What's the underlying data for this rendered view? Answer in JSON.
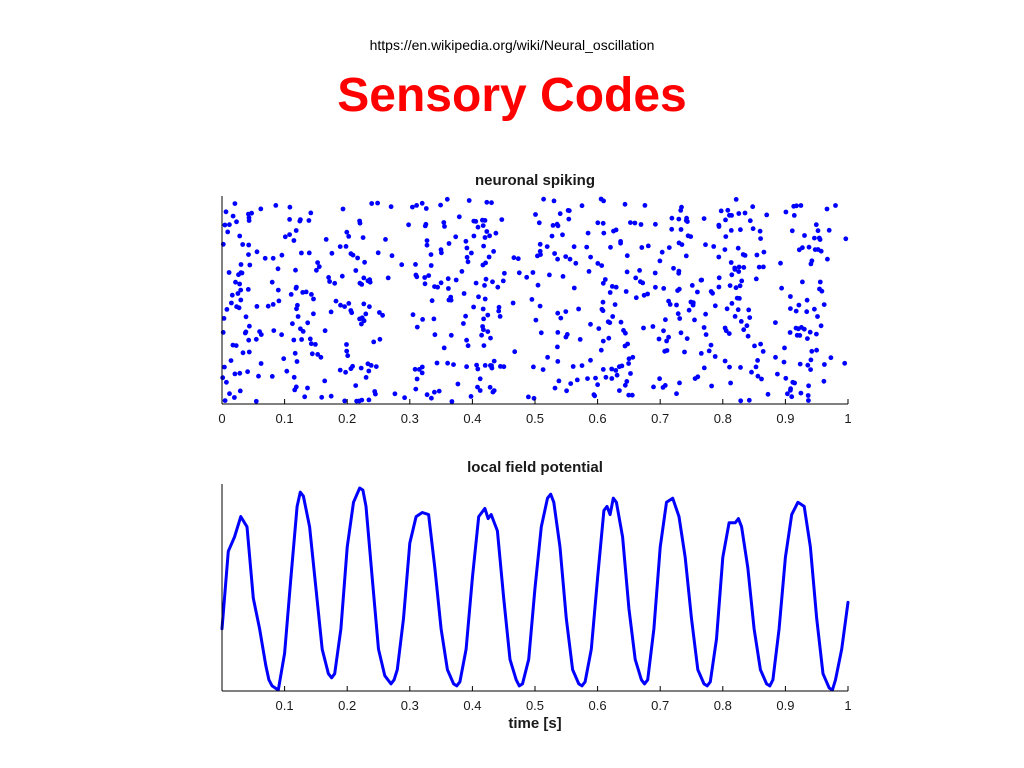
{
  "slide": {
    "url": "https://en.wikipedia.org/wiki/Neural_oscillation",
    "title": "Sensory Codes"
  },
  "chart_data": [
    {
      "type": "scatter",
      "title": "neuronal spiking",
      "xlim": [
        0,
        1
      ],
      "xticks": [
        "0",
        "0.1",
        "0.2",
        "0.3",
        "0.4",
        "0.5",
        "0.6",
        "0.7",
        "0.8",
        "0.9",
        "1"
      ],
      "xtick_values": [
        0,
        0.1,
        0.2,
        0.3,
        0.4,
        0.5,
        0.6,
        0.7,
        0.8,
        0.9,
        1
      ],
      "ylim": [
        0,
        1
      ],
      "marker_color": "#0000ff",
      "spike_density_peaks_s": [
        0.03,
        0.12,
        0.22,
        0.33,
        0.42,
        0.53,
        0.63,
        0.73,
        0.83,
        0.93
      ],
      "approx_spike_count": 700
    },
    {
      "type": "line",
      "title": "local field potential",
      "xlabel": "time [s]",
      "xlim": [
        0,
        1
      ],
      "xticks": [
        "0.1",
        "0.2",
        "0.3",
        "0.4",
        "0.5",
        "0.6",
        "0.7",
        "0.8",
        "0.9",
        "1"
      ],
      "xtick_values": [
        0.1,
        0.2,
        0.3,
        0.4,
        0.5,
        0.6,
        0.7,
        0.8,
        0.9,
        1
      ],
      "ylim": [
        0,
        1
      ],
      "line_color": "#0000ff",
      "x": [
        0.0,
        0.01,
        0.02,
        0.03,
        0.04,
        0.05,
        0.06,
        0.07,
        0.075,
        0.08,
        0.09,
        0.1,
        0.11,
        0.12,
        0.125,
        0.13,
        0.14,
        0.15,
        0.16,
        0.17,
        0.175,
        0.18,
        0.19,
        0.2,
        0.21,
        0.22,
        0.225,
        0.23,
        0.24,
        0.25,
        0.26,
        0.27,
        0.275,
        0.28,
        0.29,
        0.3,
        0.31,
        0.32,
        0.33,
        0.34,
        0.35,
        0.36,
        0.37,
        0.375,
        0.38,
        0.39,
        0.4,
        0.41,
        0.42,
        0.425,
        0.43,
        0.44,
        0.45,
        0.46,
        0.47,
        0.475,
        0.48,
        0.49,
        0.5,
        0.51,
        0.52,
        0.525,
        0.53,
        0.54,
        0.55,
        0.56,
        0.57,
        0.575,
        0.58,
        0.59,
        0.6,
        0.61,
        0.615,
        0.62,
        0.625,
        0.63,
        0.64,
        0.65,
        0.66,
        0.67,
        0.675,
        0.68,
        0.69,
        0.7,
        0.71,
        0.72,
        0.73,
        0.74,
        0.75,
        0.76,
        0.77,
        0.775,
        0.78,
        0.79,
        0.8,
        0.81,
        0.82,
        0.825,
        0.83,
        0.84,
        0.85,
        0.86,
        0.87,
        0.875,
        0.88,
        0.89,
        0.9,
        0.91,
        0.92,
        0.93,
        0.94,
        0.95,
        0.96,
        0.97,
        0.975,
        0.98,
        0.99,
        1.0
      ],
      "y": [
        0.3,
        0.68,
        0.75,
        0.85,
        0.8,
        0.45,
        0.3,
        0.12,
        0.05,
        0.02,
        0.0,
        0.18,
        0.55,
        0.9,
        0.97,
        0.95,
        0.8,
        0.5,
        0.2,
        0.08,
        0.06,
        0.08,
        0.3,
        0.7,
        0.92,
        0.99,
        0.98,
        0.9,
        0.55,
        0.2,
        0.07,
        0.03,
        0.05,
        0.1,
        0.35,
        0.72,
        0.85,
        0.87,
        0.86,
        0.6,
        0.3,
        0.1,
        0.03,
        0.02,
        0.04,
        0.2,
        0.55,
        0.85,
        0.89,
        0.84,
        0.86,
        0.78,
        0.45,
        0.15,
        0.05,
        0.02,
        0.03,
        0.15,
        0.5,
        0.8,
        0.94,
        0.96,
        0.92,
        0.7,
        0.35,
        0.1,
        0.03,
        0.02,
        0.04,
        0.2,
        0.55,
        0.88,
        0.9,
        0.86,
        0.94,
        0.92,
        0.75,
        0.4,
        0.15,
        0.05,
        0.03,
        0.05,
        0.3,
        0.7,
        0.92,
        0.94,
        0.85,
        0.65,
        0.35,
        0.1,
        0.03,
        0.02,
        0.04,
        0.25,
        0.65,
        0.82,
        0.82,
        0.84,
        0.8,
        0.6,
        0.3,
        0.1,
        0.03,
        0.02,
        0.05,
        0.3,
        0.65,
        0.86,
        0.92,
        0.9,
        0.7,
        0.35,
        0.08,
        0.01,
        0.0,
        0.05,
        0.2,
        0.43
      ]
    }
  ]
}
